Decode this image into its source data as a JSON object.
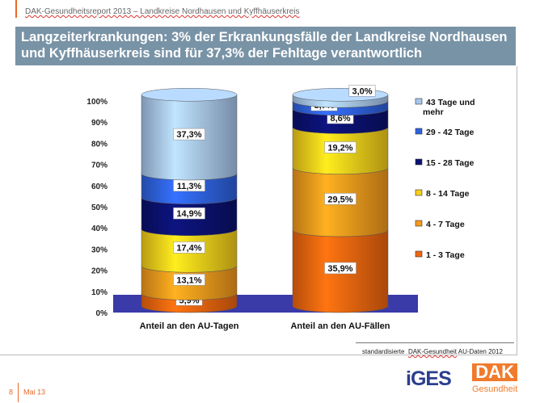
{
  "header": {
    "report": "DAK-Gesundheitsreport 2013 – Landkreise Nordhausen und Kyffhäuserkreis",
    "title_line1": "Langzeiterkrankungen: 3% der Erkrankungsfälle der Landkreise Nordhausen",
    "title_line2": "und Kyffhäuserkreis sind für 37,3% der Fehltage verantwortlich"
  },
  "source": {
    "prefix": "standardisierte",
    "link": "DAK-Gesundheit",
    "suffix": "AU-Daten 2012"
  },
  "footer": {
    "page": "8",
    "date": "Mai 13"
  },
  "logos": {
    "iges": "iGES",
    "dak": "DAK",
    "dak_sub": "Gesundheit"
  },
  "chart_data": {
    "type": "bar",
    "stacked": true,
    "style": "3d-cylinder",
    "categories": [
      "Anteil an den AU-Tagen",
      "Anteil an den AU-Fällen"
    ],
    "yticks": [
      "0%",
      "10%",
      "20%",
      "30%",
      "40%",
      "50%",
      "60%",
      "70%",
      "80%",
      "90%",
      "100%"
    ],
    "ylim": [
      0,
      100
    ],
    "grid": false,
    "legend_position": "right",
    "series": [
      {
        "name": "1 - 3 Tage",
        "color": "#f2660f",
        "values": [
          5.9,
          35.9
        ],
        "labels": [
          "5,9%",
          "35,9%"
        ]
      },
      {
        "name": "4 - 7 Tage",
        "color": "#f59a1c",
        "values": [
          13.1,
          29.5
        ],
        "labels": [
          "13,1%",
          "29,5%"
        ]
      },
      {
        "name": "8 - 14 Tage",
        "color": "#f8cf1a",
        "values": [
          17.4,
          19.2
        ],
        "labels": [
          "17,4%",
          "19,2%"
        ]
      },
      {
        "name": "15 - 28 Tage",
        "color": "#0b1170",
        "values": [
          14.9,
          8.6
        ],
        "labels": [
          "14,9%",
          "8,6%"
        ]
      },
      {
        "name": "29 - 42 Tage",
        "color": "#2f62e0",
        "values": [
          11.3,
          3.7
        ],
        "labels": [
          "11,3%",
          "3,7%"
        ]
      },
      {
        "name": "43 Tage und mehr",
        "color": "#a8c7ee",
        "values": [
          37.3,
          3.0
        ],
        "labels": [
          "37,3%",
          "3,0%"
        ]
      }
    ]
  }
}
